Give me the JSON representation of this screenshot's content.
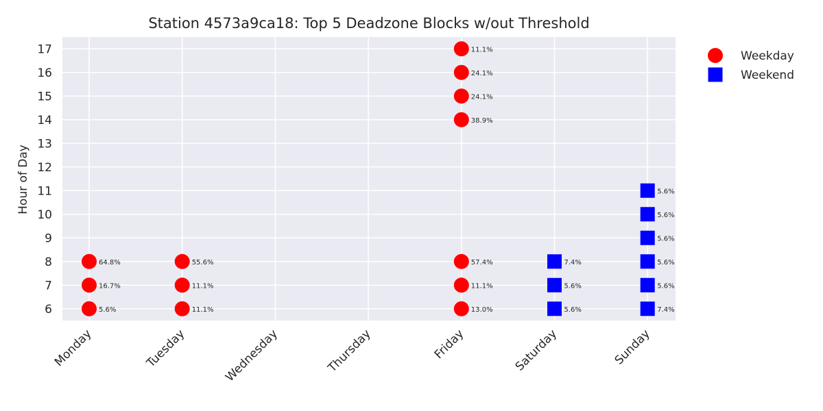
{
  "chart_data": {
    "type": "scatter",
    "title": "Station 4573a9ca18: Top 5 Deadzone Blocks w/out Threshold",
    "xlabel": "",
    "ylabel": "Hour of Day",
    "categories": [
      "Monday",
      "Tuesday",
      "Wednesday",
      "Thursday",
      "Friday",
      "Saturday",
      "Sunday"
    ],
    "yticks": [
      "6",
      "7",
      "8",
      "9",
      "10",
      "11",
      "12",
      "13",
      "14",
      "15",
      "16",
      "17"
    ],
    "ylim": [
      5.5,
      17.5
    ],
    "grid": true,
    "legend_position": "outside-top-right",
    "series": [
      {
        "name": "Weekday",
        "marker": "circle",
        "color": "#ff0000",
        "points": [
          {
            "day": "Monday",
            "hour": 8,
            "label": "64.8%"
          },
          {
            "day": "Monday",
            "hour": 7,
            "label": "16.7%"
          },
          {
            "day": "Monday",
            "hour": 6,
            "label": "5.6%"
          },
          {
            "day": "Tuesday",
            "hour": 8,
            "label": "55.6%"
          },
          {
            "day": "Tuesday",
            "hour": 7,
            "label": "11.1%"
          },
          {
            "day": "Tuesday",
            "hour": 6,
            "label": "11.1%"
          },
          {
            "day": "Friday",
            "hour": 17,
            "label": "11.1%"
          },
          {
            "day": "Friday",
            "hour": 16,
            "label": "24.1%"
          },
          {
            "day": "Friday",
            "hour": 15,
            "label": "24.1%"
          },
          {
            "day": "Friday",
            "hour": 14,
            "label": "38.9%"
          },
          {
            "day": "Friday",
            "hour": 8,
            "label": "57.4%"
          },
          {
            "day": "Friday",
            "hour": 7,
            "label": "11.1%"
          },
          {
            "day": "Friday",
            "hour": 6,
            "label": "13.0%"
          }
        ]
      },
      {
        "name": "Weekend",
        "marker": "square",
        "color": "#0000ff",
        "points": [
          {
            "day": "Saturday",
            "hour": 8,
            "label": "7.4%"
          },
          {
            "day": "Saturday",
            "hour": 7,
            "label": "5.6%"
          },
          {
            "day": "Saturday",
            "hour": 6,
            "label": "5.6%"
          },
          {
            "day": "Sunday",
            "hour": 11,
            "label": "5.6%"
          },
          {
            "day": "Sunday",
            "hour": 10,
            "label": "5.6%"
          },
          {
            "day": "Sunday",
            "hour": 9,
            "label": "5.6%"
          },
          {
            "day": "Sunday",
            "hour": 8,
            "label": "5.6%"
          },
          {
            "day": "Sunday",
            "hour": 7,
            "label": "5.6%"
          },
          {
            "day": "Sunday",
            "hour": 6,
            "label": "7.4%"
          }
        ]
      }
    ],
    "colors": {
      "plot_background": "#eaeaf2",
      "grid": "#ffffff"
    }
  }
}
